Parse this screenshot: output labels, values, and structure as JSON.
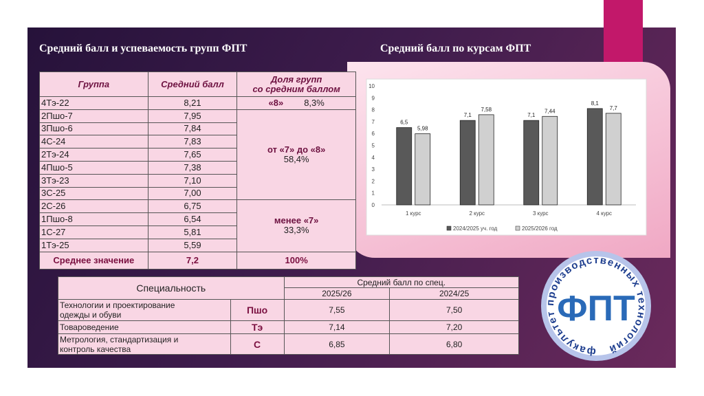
{
  "left_title": "Средний балл и успеваемость групп ФПТ",
  "groups_table": {
    "headers": [
      "Группа",
      "Средний балл",
      "Доля групп\nсо средним баллом"
    ],
    "shares": [
      {
        "label": "«8»",
        "percent": "8,3%",
        "rows": [
          [
            "4Тэ-22",
            "8,21"
          ]
        ]
      },
      {
        "label": "от «7» до «8»",
        "percent": "58,4%",
        "rows": [
          [
            "2Пшо-7",
            "7,95"
          ],
          [
            "3Пшо-6",
            "7,84"
          ],
          [
            "4С-24",
            "7,83"
          ],
          [
            "2Тэ-24",
            "7,65"
          ],
          [
            "4Пшо-5",
            "7,38"
          ],
          [
            "3Тэ-23",
            "7,10"
          ],
          [
            "3С-25",
            "7,00"
          ]
        ]
      },
      {
        "label": "менее «7»",
        "percent": "33,3%",
        "rows": [
          [
            "2С-26",
            "6,75"
          ],
          [
            "1Пшо-8",
            "6,54"
          ],
          [
            "1С-27",
            "5,81"
          ],
          [
            "1Тэ-25",
            "5,59"
          ]
        ]
      }
    ],
    "total": [
      "Среднее значение",
      "7,2",
      "100%"
    ]
  },
  "spec_table": {
    "header": "Специальность",
    "score_header": "Средний балл по спец.",
    "years": [
      "2025/26",
      "2024/25"
    ],
    "rows": [
      [
        "Технологии и проектирование\nодежды и обуви",
        "Пшо",
        "7,55",
        "7,50"
      ],
      [
        "Товароведение",
        "Тэ",
        "7,14",
        "7,20"
      ],
      [
        "Метрология, стандартизация и\nконтроль качества",
        "С",
        "6,85",
        "6,80"
      ]
    ]
  },
  "chart_data": {
    "type": "bar",
    "title": "Средний балл по курсам ФПТ",
    "categories": [
      "1 курс",
      "2 курс",
      "3 курс",
      "4 курс"
    ],
    "series": [
      {
        "name": "2024/2025 уч. год",
        "color": "#595959",
        "values": [
          6.5,
          7.1,
          7.1,
          8.1
        ],
        "value_labels": [
          "6,5",
          "7,1",
          "7,1",
          "8,1"
        ]
      },
      {
        "name": "2025/2026 год",
        "color": "#d0d0d0",
        "values": [
          5.98,
          7.58,
          7.44,
          7.7
        ],
        "value_labels": [
          "5,98",
          "7,58",
          "7,44",
          "7,7"
        ]
      }
    ],
    "ylim": [
      0,
      10
    ],
    "yticks": [
      0,
      1,
      2,
      3,
      4,
      5,
      6,
      7,
      8,
      9,
      10
    ],
    "grid": false,
    "legend": "bottom"
  },
  "logo": {
    "ring_text": "факультет производственных технологий",
    "letters": "ФПТ"
  }
}
